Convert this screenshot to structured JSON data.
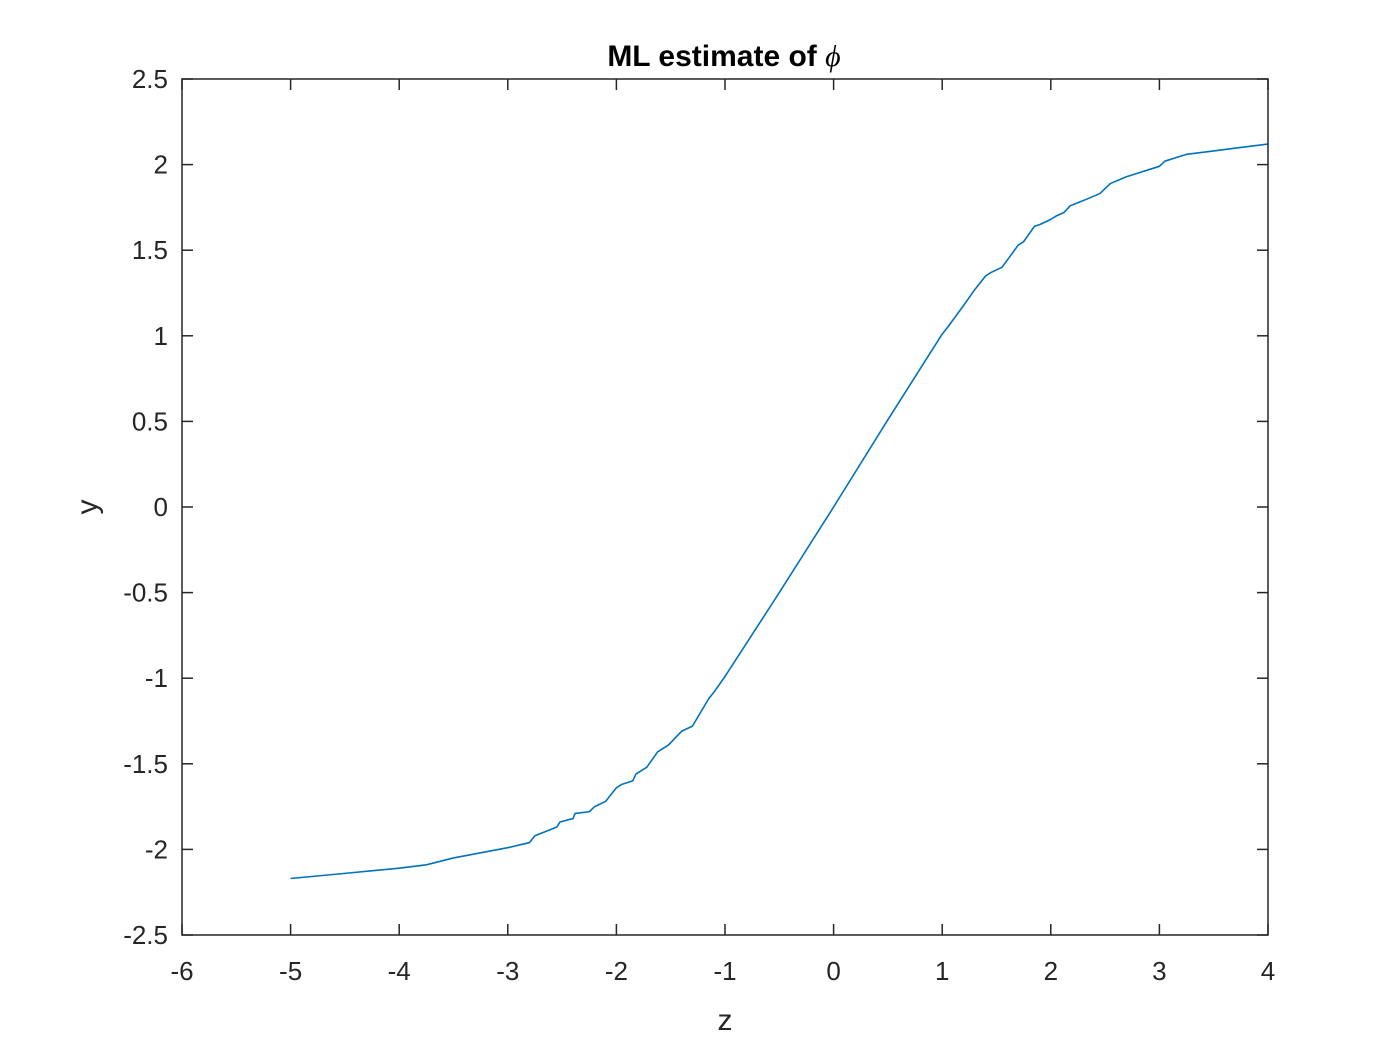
{
  "chart_data": {
    "type": "line",
    "title": "ML estimate of ",
    "title_symbol": "ϕ",
    "xlabel": "z",
    "ylabel": "y",
    "xlim": [
      -6,
      4
    ],
    "ylim": [
      -2.5,
      2.5
    ],
    "xticks": [
      -6,
      -5,
      -4,
      -3,
      -2,
      -1,
      0,
      1,
      2,
      3,
      4
    ],
    "xtick_labels": [
      "-6",
      "-5",
      "-4",
      "-3",
      "-2",
      "-1",
      "0",
      "1",
      "2",
      "3",
      "4"
    ],
    "yticks": [
      -2.5,
      -2,
      -1.5,
      -1,
      -0.5,
      0,
      0.5,
      1,
      1.5,
      2,
      2.5
    ],
    "ytick_labels": [
      "-2.5",
      "-2",
      "-1.5",
      "-1",
      "-0.5",
      "0",
      "0.5",
      "1",
      "1.5",
      "2",
      "2.5"
    ],
    "grid": false,
    "line_color": "#0072BD",
    "axes_color": "#262626",
    "series": [
      {
        "x": [
          -5.0,
          -4.5,
          -4.0,
          -3.75,
          -3.5,
          -3.25,
          -3.0,
          -2.8,
          -2.75,
          -2.55,
          -2.52,
          -2.4,
          -2.38,
          -2.25,
          -2.2,
          -2.1,
          -2.0,
          -1.95,
          -1.85,
          -1.82,
          -1.72,
          -1.62,
          -1.52,
          -1.4,
          -1.3,
          -1.15,
          -1.1,
          -1.0,
          -0.5,
          0.0,
          0.5,
          1.0,
          1.05,
          1.2,
          1.3,
          1.35,
          1.4,
          1.45,
          1.55,
          1.62,
          1.7,
          1.75,
          1.85,
          1.9,
          2.0,
          2.05,
          2.12,
          2.18,
          2.3,
          2.45,
          2.5,
          2.55,
          2.7,
          3.0,
          3.05,
          3.2,
          3.25,
          3.5,
          3.75,
          4.0
        ],
        "y": [
          -2.17,
          -2.14,
          -2.11,
          -2.09,
          -2.05,
          -2.02,
          -1.99,
          -1.96,
          -1.92,
          -1.87,
          -1.84,
          -1.82,
          -1.79,
          -1.78,
          -1.75,
          -1.72,
          -1.64,
          -1.62,
          -1.6,
          -1.56,
          -1.52,
          -1.43,
          -1.39,
          -1.31,
          -1.28,
          -1.12,
          -1.08,
          -0.99,
          -0.5,
          0.0,
          0.51,
          1.01,
          1.05,
          1.18,
          1.27,
          1.31,
          1.35,
          1.37,
          1.4,
          1.46,
          1.53,
          1.55,
          1.64,
          1.65,
          1.68,
          1.7,
          1.72,
          1.76,
          1.79,
          1.83,
          1.86,
          1.89,
          1.93,
          1.99,
          2.02,
          2.05,
          2.06,
          2.08,
          2.1,
          2.12
        ]
      }
    ]
  }
}
